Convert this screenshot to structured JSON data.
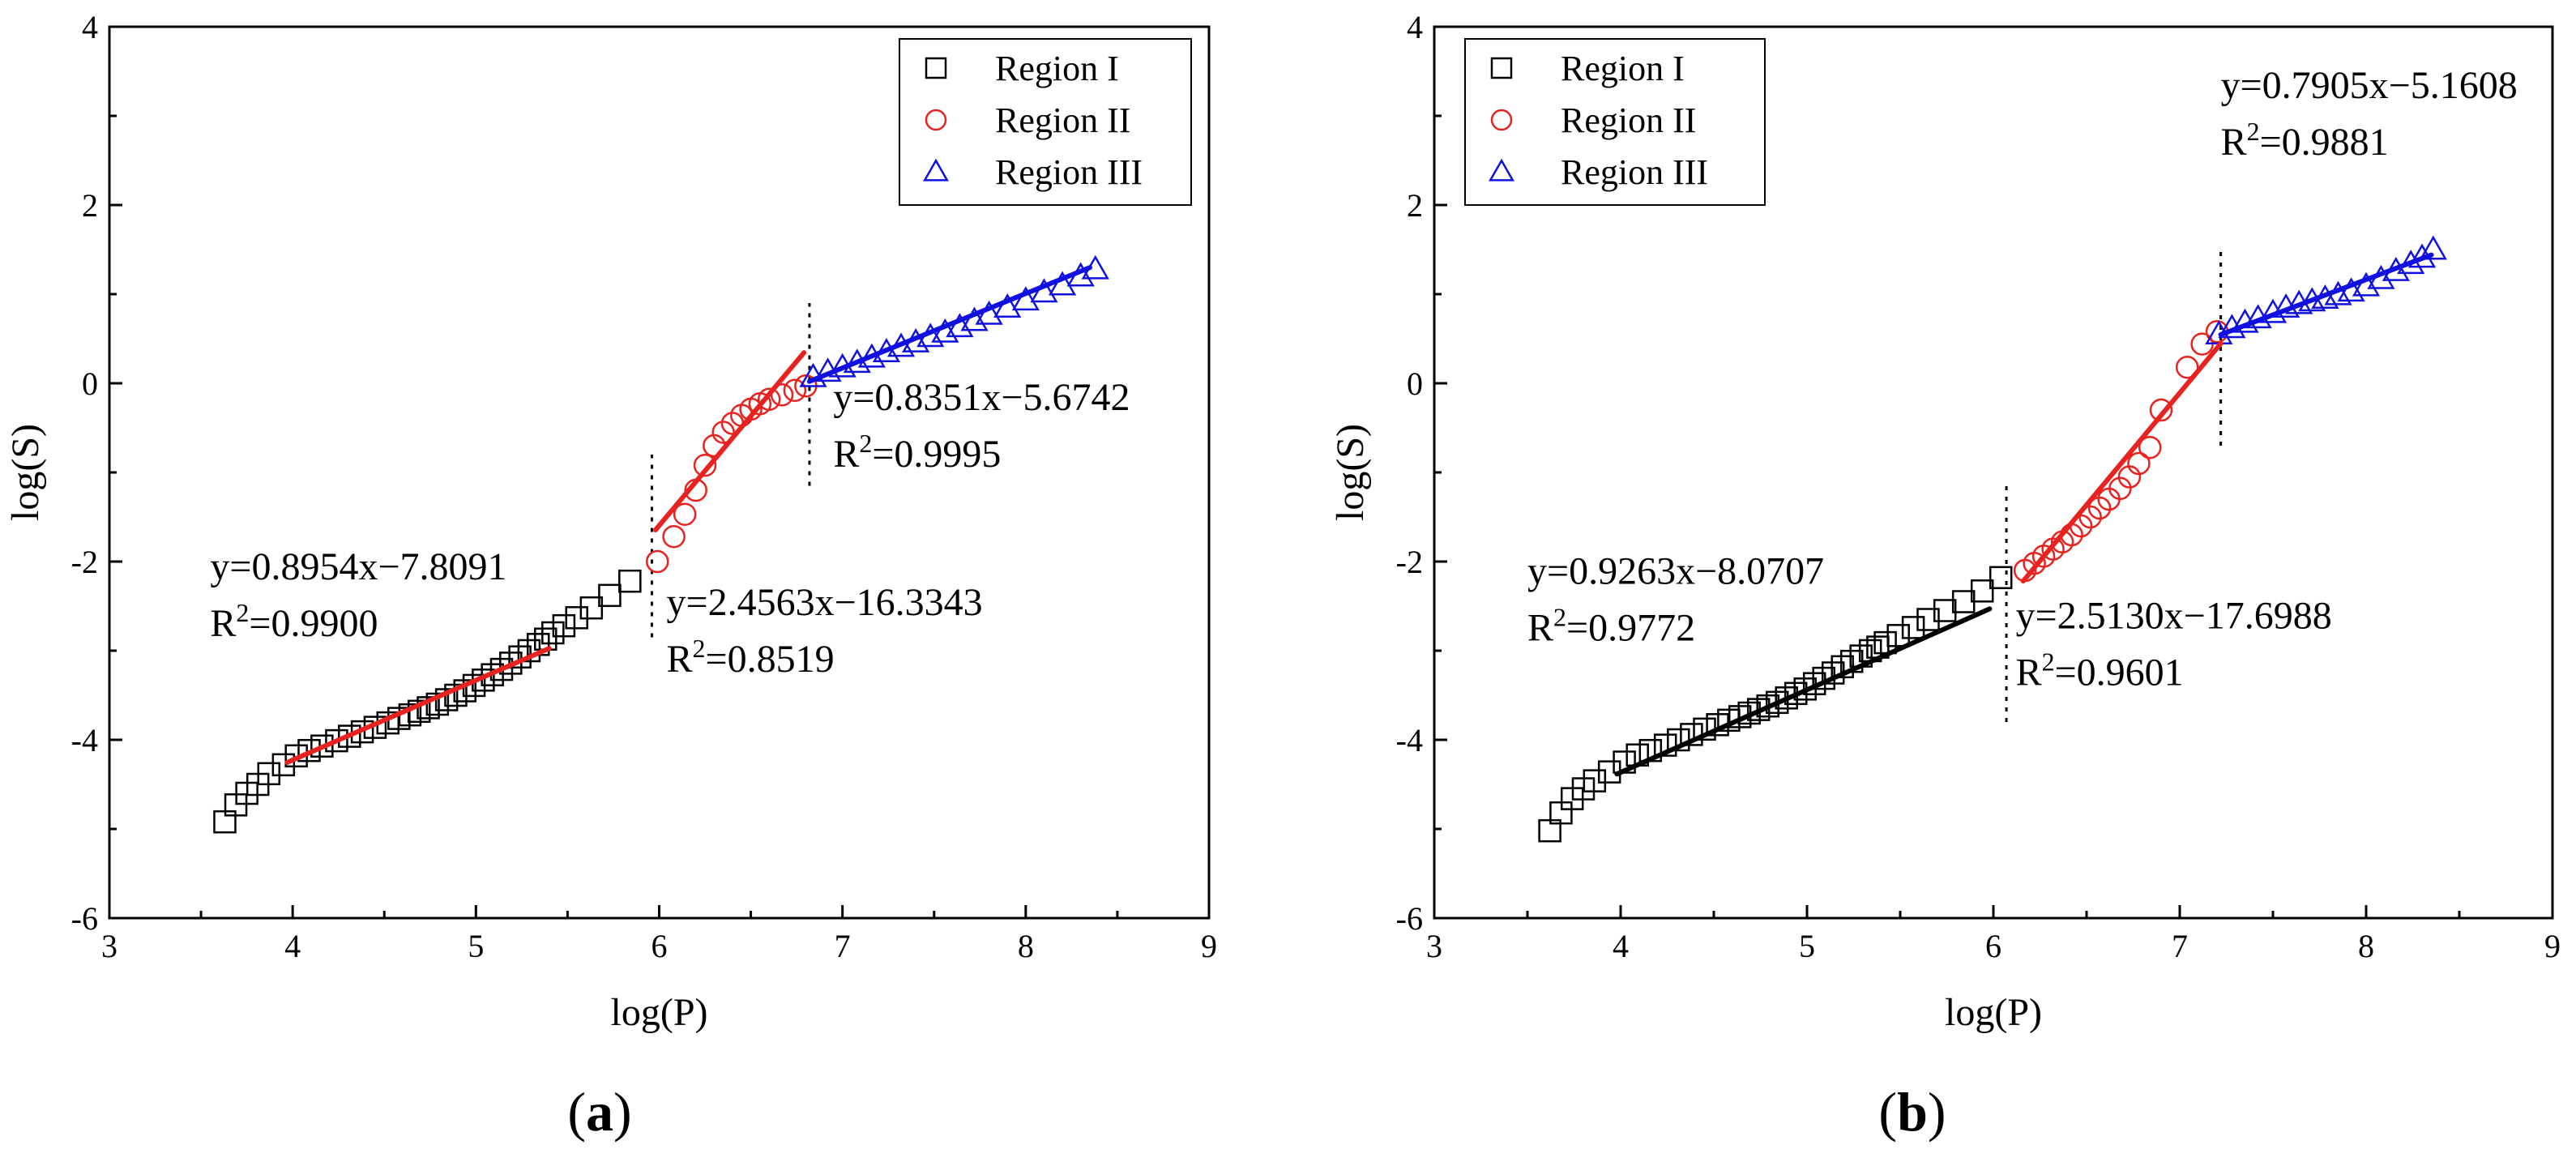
{
  "chart_data": [
    {
      "type": "scatter",
      "panel_label_letter": "a",
      "xlabel": "log(P)",
      "ylabel": "log(S)",
      "xlim": [
        3,
        9
      ],
      "ylim": [
        -6,
        4
      ],
      "xticks": [
        3,
        4,
        5,
        6,
        7,
        8,
        9
      ],
      "yticks": [
        -6,
        -4,
        -2,
        0,
        2,
        4
      ],
      "legend": {
        "position": "top-right",
        "entries": [
          {
            "label": "Region I",
            "marker": "square",
            "color": "#000000"
          },
          {
            "label": "Region II",
            "marker": "circle",
            "color": "#e8231f"
          },
          {
            "label": "Region III",
            "marker": "triangle",
            "color": "#1010e0"
          }
        ]
      },
      "series": [
        {
          "name": "Region I",
          "marker": "square",
          "color": "#000000",
          "x": [
            3.63,
            3.69,
            3.75,
            3.81,
            3.87,
            3.95,
            4.02,
            4.09,
            4.16,
            4.24,
            4.31,
            4.38,
            4.45,
            4.52,
            4.58,
            4.64,
            4.69,
            4.74,
            4.79,
            4.84,
            4.89,
            4.94,
            4.99,
            5.04,
            5.09,
            5.14,
            5.19,
            5.24,
            5.29,
            5.34,
            5.38,
            5.42,
            5.48,
            5.55,
            5.63,
            5.73,
            5.84
          ],
          "y": [
            -4.92,
            -4.73,
            -4.6,
            -4.5,
            -4.38,
            -4.28,
            -4.18,
            -4.12,
            -4.07,
            -4.01,
            -3.96,
            -3.91,
            -3.86,
            -3.81,
            -3.76,
            -3.72,
            -3.68,
            -3.64,
            -3.6,
            -3.55,
            -3.5,
            -3.45,
            -3.39,
            -3.33,
            -3.27,
            -3.21,
            -3.14,
            -3.07,
            -3.0,
            -2.93,
            -2.87,
            -2.8,
            -2.72,
            -2.63,
            -2.52,
            -2.38,
            -2.22
          ]
        },
        {
          "name": "Region II",
          "marker": "circle",
          "color": "#e8231f",
          "x": [
            5.99,
            6.08,
            6.14,
            6.2,
            6.25,
            6.3,
            6.35,
            6.4,
            6.45,
            6.5,
            6.55,
            6.6,
            6.67,
            6.74,
            6.8
          ],
          "y": [
            -2.0,
            -1.72,
            -1.47,
            -1.2,
            -0.92,
            -0.7,
            -0.55,
            -0.45,
            -0.36,
            -0.29,
            -0.23,
            -0.18,
            -0.13,
            -0.08,
            -0.03
          ]
        },
        {
          "name": "Region III",
          "marker": "triangle",
          "color": "#1010e0",
          "x": [
            6.84,
            6.92,
            7.0,
            7.08,
            7.16,
            7.24,
            7.32,
            7.4,
            7.48,
            7.56,
            7.64,
            7.72,
            7.8,
            7.9,
            8.0,
            8.1,
            8.2,
            8.3,
            8.38
          ],
          "y": [
            0.07,
            0.13,
            0.18,
            0.23,
            0.29,
            0.35,
            0.41,
            0.46,
            0.52,
            0.57,
            0.63,
            0.7,
            0.77,
            0.85,
            0.93,
            1.02,
            1.1,
            1.2,
            1.28
          ]
        }
      ],
      "fits": [
        {
          "color": "#e8231f",
          "x": [
            3.97,
            5.4
          ],
          "y": [
            -4.253,
            -2.974
          ]
        },
        {
          "color": "#e8231f",
          "x": [
            5.98,
            6.79
          ],
          "y": [
            -1.645,
            0.344
          ]
        },
        {
          "color": "#1010e0",
          "x": [
            6.82,
            8.35
          ],
          "y": [
            0.021,
            1.299
          ]
        }
      ],
      "dividers": [
        {
          "x": 5.96,
          "y": [
            -2.85,
            -0.8
          ]
        },
        {
          "x": 6.82,
          "y": [
            -1.15,
            0.9
          ]
        }
      ],
      "annotations": [
        {
          "eq": "y=0.8954x−7.8091",
          "r2": "0.9900",
          "x": 3.55,
          "y": -2.2
        },
        {
          "eq": "y=2.4563x−16.3343",
          "r2": "0.8519",
          "x": 6.04,
          "y": -2.6
        },
        {
          "eq": "y=0.8351x−5.6742",
          "r2": "0.9995",
          "x": 6.95,
          "y": -0.3
        }
      ]
    },
    {
      "type": "scatter",
      "panel_label_letter": "b",
      "xlabel": "log(P)",
      "ylabel": "log(S)",
      "xlim": [
        3,
        9
      ],
      "ylim": [
        -6,
        4
      ],
      "xticks": [
        3,
        4,
        5,
        6,
        7,
        8,
        9
      ],
      "yticks": [
        -6,
        -4,
        -2,
        0,
        2,
        4
      ],
      "legend": {
        "position": "top-left",
        "entries": [
          {
            "label": "Region I",
            "marker": "square",
            "color": "#000000"
          },
          {
            "label": "Region II",
            "marker": "circle",
            "color": "#e8231f"
          },
          {
            "label": "Region III",
            "marker": "triangle",
            "color": "#1010e0"
          }
        ]
      },
      "series": [
        {
          "name": "Region I",
          "marker": "square",
          "color": "#000000",
          "x": [
            3.62,
            3.68,
            3.74,
            3.8,
            3.86,
            3.94,
            4.02,
            4.09,
            4.16,
            4.24,
            4.31,
            4.38,
            4.45,
            4.52,
            4.58,
            4.64,
            4.69,
            4.74,
            4.79,
            4.84,
            4.89,
            4.94,
            4.99,
            5.04,
            5.09,
            5.14,
            5.19,
            5.24,
            5.29,
            5.34,
            5.38,
            5.42,
            5.49,
            5.57,
            5.65,
            5.74,
            5.84,
            5.94,
            6.04
          ],
          "y": [
            -5.02,
            -4.82,
            -4.66,
            -4.55,
            -4.46,
            -4.36,
            -4.25,
            -4.17,
            -4.12,
            -4.06,
            -4.0,
            -3.94,
            -3.88,
            -3.83,
            -3.78,
            -3.74,
            -3.7,
            -3.66,
            -3.62,
            -3.58,
            -3.53,
            -3.48,
            -3.43,
            -3.37,
            -3.31,
            -3.25,
            -3.18,
            -3.12,
            -3.06,
            -3.0,
            -2.96,
            -2.91,
            -2.83,
            -2.74,
            -2.65,
            -2.55,
            -2.45,
            -2.33,
            -2.18
          ]
        },
        {
          "name": "Region II",
          "marker": "circle",
          "color": "#e8231f",
          "x": [
            6.17,
            6.22,
            6.27,
            6.32,
            6.37,
            6.42,
            6.47,
            6.52,
            6.57,
            6.62,
            6.68,
            6.73,
            6.78,
            6.84,
            6.9,
            7.04,
            7.12,
            7.2
          ],
          "y": [
            -2.1,
            -2.02,
            -1.94,
            -1.86,
            -1.78,
            -1.7,
            -1.6,
            -1.5,
            -1.4,
            -1.3,
            -1.18,
            -1.05,
            -0.9,
            -0.72,
            -0.3,
            0.18,
            0.44,
            0.58
          ]
        },
        {
          "name": "Region III",
          "marker": "triangle",
          "color": "#1010e0",
          "x": [
            7.21,
            7.28,
            7.35,
            7.42,
            7.5,
            7.57,
            7.64,
            7.71,
            7.78,
            7.85,
            7.92,
            8.0,
            8.08,
            8.16,
            8.24,
            8.3,
            8.36
          ],
          "y": [
            0.55,
            0.62,
            0.68,
            0.73,
            0.79,
            0.85,
            0.89,
            0.92,
            0.95,
            0.99,
            1.03,
            1.09,
            1.17,
            1.26,
            1.34,
            1.41,
            1.5
          ]
        }
      ],
      "fits": [
        {
          "color": "#000000",
          "x": [
            3.98,
            5.98
          ],
          "y": [
            -4.384,
            -2.531
          ]
        },
        {
          "color": "#e8231f",
          "x": [
            6.16,
            7.22
          ],
          "y": [
            -2.219,
            0.445
          ]
        },
        {
          "color": "#1010e0",
          "x": [
            7.22,
            8.35
          ],
          "y": [
            0.546,
            1.44
          ]
        }
      ],
      "dividers": [
        {
          "x": 6.07,
          "y": [
            -3.8,
            -1.1
          ]
        },
        {
          "x": 7.22,
          "y": [
            -0.7,
            1.5
          ]
        }
      ],
      "annotations": [
        {
          "eq": "y=0.9263x−8.0707",
          "r2": "0.9772",
          "x": 3.5,
          "y": -2.25
        },
        {
          "eq": "y=2.5130x−17.6988",
          "r2": "0.9601",
          "x": 6.12,
          "y": -2.75
        },
        {
          "eq": "y=0.7905x−5.1608",
          "r2": "0.9881",
          "x": 7.22,
          "y": 3.2
        }
      ]
    }
  ]
}
